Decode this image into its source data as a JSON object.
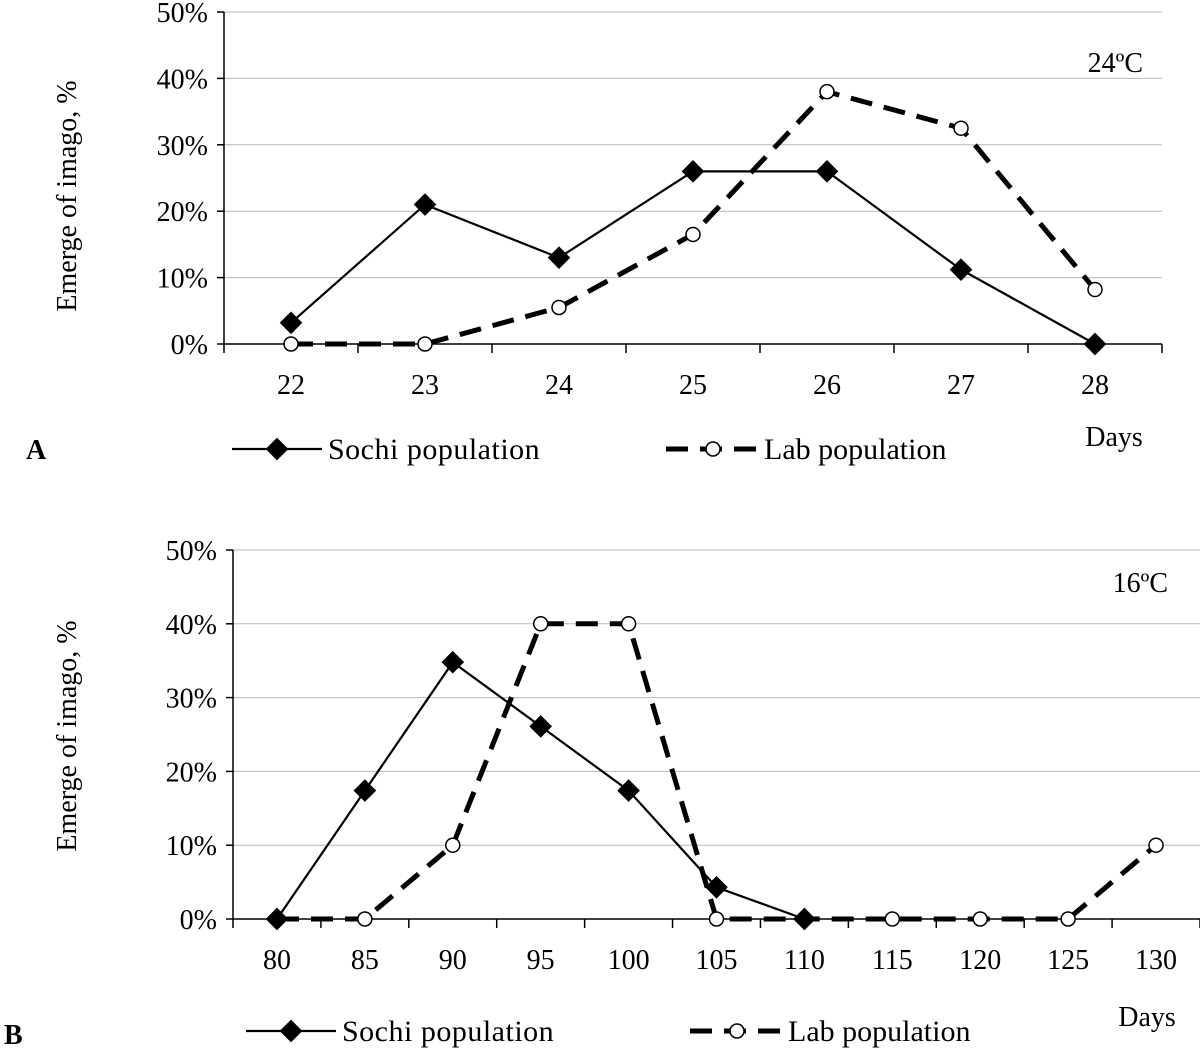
{
  "chart_data": [
    {
      "type": "line",
      "panel_label": "A",
      "temperature": "24ºC",
      "x_title": "Days",
      "ylabel": "Emerge of imago, %",
      "categories": [
        "22",
        "23",
        "24",
        "25",
        "26",
        "27",
        "28"
      ],
      "y_ticks": [
        "0%",
        "10%",
        "20%",
        "30%",
        "40%",
        "50%"
      ],
      "ylim": [
        0,
        50
      ],
      "grid": true,
      "legend_position": "bottom",
      "series": [
        {
          "name": "Sochi population",
          "values": [
            3.2,
            21.0,
            13.0,
            26.0,
            26.0,
            11.2,
            0.0
          ],
          "style": "solid",
          "marker": "diamond"
        },
        {
          "name": "Lab population",
          "values": [
            0.0,
            0.0,
            5.5,
            16.5,
            38.0,
            32.5,
            8.2
          ],
          "style": "dashed",
          "marker": "open-circle"
        }
      ]
    },
    {
      "type": "line",
      "panel_label": "B",
      "temperature": "16ºC",
      "x_title": "Days",
      "ylabel": "Emerge of imago, %",
      "categories": [
        "80",
        "85",
        "90",
        "95",
        "100",
        "105",
        "110",
        "115",
        "120",
        "125",
        "130"
      ],
      "y_ticks": [
        "0%",
        "10%",
        "20%",
        "30%",
        "40%",
        "50%"
      ],
      "ylim": [
        0,
        50
      ],
      "grid": true,
      "legend_position": "bottom",
      "series": [
        {
          "name": "Sochi population",
          "values": [
            0.0,
            17.4,
            34.8,
            26.1,
            17.4,
            4.3,
            0.0,
            null,
            null,
            null,
            null
          ],
          "style": "solid",
          "marker": "diamond"
        },
        {
          "name": "Lab population",
          "values": [
            0.0,
            0.0,
            10.0,
            40.0,
            40.0,
            0.0,
            0.0,
            0.0,
            0.0,
            0.0,
            10.0
          ],
          "style": "dashed",
          "marker": "open-circle"
        }
      ]
    }
  ]
}
